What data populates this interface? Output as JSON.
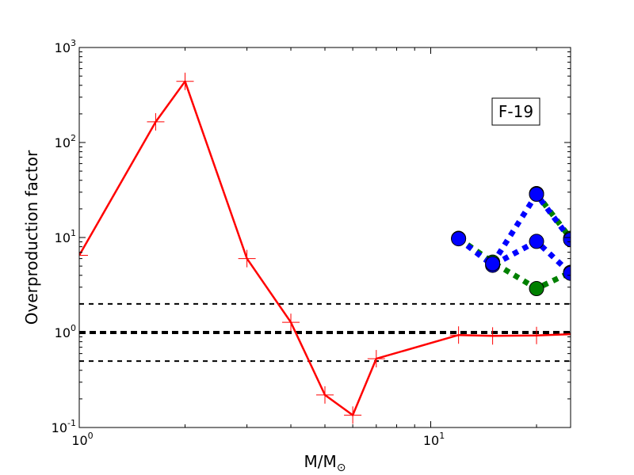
{
  "chart_data": {
    "type": "line",
    "xscale": "log",
    "yscale": "log",
    "xlim": [
      1,
      25
    ],
    "ylim": [
      0.1,
      1000
    ],
    "xlabel": "M/M",
    "xlabel_subscript": "⊙",
    "ylabel": "Overproduction factor",
    "x_ticks": [
      {
        "value": 1,
        "base": "10",
        "exp": "0"
      },
      {
        "value": 10,
        "base": "10",
        "exp": "1"
      }
    ],
    "y_ticks": [
      {
        "value": 0.1,
        "base": "10",
        "exp": "-1"
      },
      {
        "value": 1,
        "base": "10",
        "exp": "0"
      },
      {
        "value": 10,
        "base": "10",
        "exp": "1"
      },
      {
        "value": 100,
        "base": "10",
        "exp": "2"
      },
      {
        "value": 1000,
        "base": "10",
        "exp": "3"
      }
    ],
    "reference_lines": [
      {
        "y": 2,
        "style": "dashed",
        "width": "thin"
      },
      {
        "y": 1,
        "style": "dashed",
        "width": "thick"
      },
      {
        "y": 0.5,
        "style": "dashed",
        "width": "thin"
      }
    ],
    "annotation": "F-19",
    "series": [
      {
        "color": "#ff0000",
        "line": "solid",
        "marker": "plus",
        "x": [
          1.0,
          1.65,
          2.0,
          3.0,
          4.0,
          5.0,
          6.0,
          7.0,
          12.0,
          15.0,
          20.0,
          25.0
        ],
        "y": [
          6.5,
          165,
          440,
          6.0,
          1.28,
          0.22,
          0.135,
          0.53,
          0.94,
          0.92,
          0.93,
          0.96
        ]
      },
      {
        "color": "#008000",
        "line": "dotted",
        "marker": "circle",
        "x": [
          12.0,
          15.0,
          20.0,
          25.0
        ],
        "y": [
          9.8,
          5.5,
          2.9,
          4.3
        ]
      },
      {
        "color": "#008000",
        "line": "dotted",
        "marker": "circle",
        "x": [
          20.0,
          25.0
        ],
        "y": [
          29,
          9.8
        ]
      },
      {
        "color": "#0000ff",
        "line": "dotted",
        "marker": "circle",
        "x": [
          12.0,
          15.0,
          20.0,
          25.0
        ],
        "y": [
          9.7,
          5.1,
          9.1,
          4.2
        ]
      },
      {
        "color": "#0000ff",
        "line": "dotted",
        "marker": "circle",
        "x": [
          15.0,
          20.0,
          25.0
        ],
        "y": [
          5.3,
          28.5,
          9.5
        ]
      }
    ]
  }
}
